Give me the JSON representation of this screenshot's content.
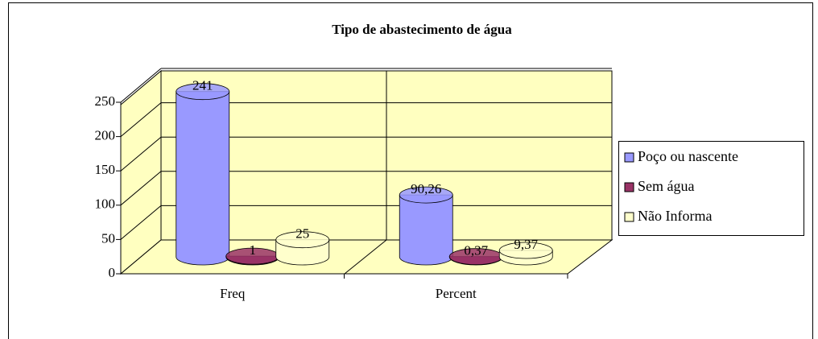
{
  "chart_data": {
    "type": "bar",
    "title": "Tipo de abastecimento de água",
    "categories": [
      "Freq",
      "Percent"
    ],
    "series": [
      {
        "name": "Poço ou nascente",
        "color": "#9999ff",
        "values": [
          241,
          90.26
        ],
        "value_labels": [
          "241",
          "90,26"
        ]
      },
      {
        "name": "Sem água",
        "color": "#993366",
        "values": [
          1,
          0.37
        ],
        "value_labels": [
          "1",
          "0,37"
        ]
      },
      {
        "name": "Não Informa",
        "color": "#ffffcc",
        "values": [
          25,
          9.37
        ],
        "value_labels": [
          "25",
          "9,37"
        ]
      }
    ],
    "ylim": [
      0,
      250
    ],
    "yticks": [
      0,
      50,
      100,
      150,
      200,
      250
    ],
    "grid": true,
    "legend": "right"
  }
}
